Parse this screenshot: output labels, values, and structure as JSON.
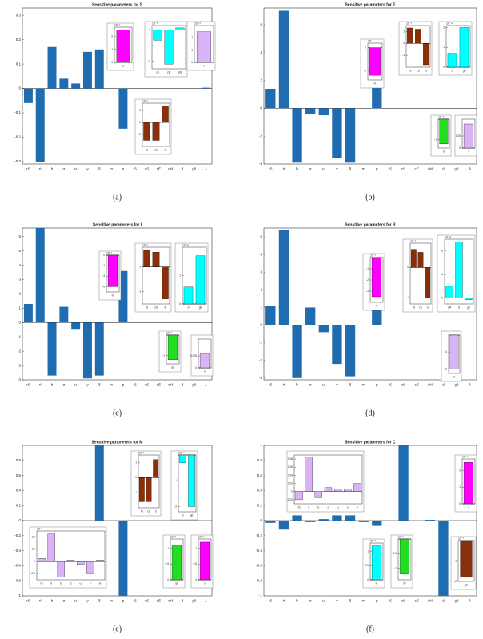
{
  "chart_data": [
    {
      "type": "bar",
      "title": "Sensitive parameters for S",
      "caption": "(a)",
      "color": "#1f6cb0",
      "categories": [
        "rS",
        "rI",
        "b",
        "α",
        "ω",
        "γ",
        "δ",
        "m",
        "p",
        "fS",
        "cS",
        "cE",
        "cM",
        "d",
        "g0",
        "λ"
      ],
      "values": [
        -0.06,
        -0.3,
        0.17,
        0.04,
        0.02,
        0.15,
        0.16,
        0,
        -0.165,
        0,
        0,
        0,
        0,
        0,
        0,
        0.003
      ],
      "ylim": [
        -0.31,
        0.33
      ],
      "yticks": [
        -0.3,
        -0.2,
        -0.1,
        0,
        0.1,
        0.2,
        0.3
      ],
      "insets": [
        {
          "scale": "10⁻⁶",
          "categories": [
            "m"
          ],
          "values": [
            2.5
          ],
          "color": "#ff00ff",
          "ylim": [
            0,
            2.7
          ],
          "yticks": [
            0,
            1,
            2
          ]
        },
        {
          "scale": "10⁻⁸",
          "categories": [
            "cS",
            "cE",
            "cM"
          ],
          "values": [
            -1.3,
            -4.4,
            0.3
          ],
          "color": "#00ffff",
          "ylim": [
            -5,
            0.6
          ],
          "yticks": [
            -4,
            -2,
            0
          ]
        },
        {
          "scale": "10⁻¹⁰",
          "categories": [
            "λ"
          ],
          "values": [
            2.5
          ],
          "color": "#d9b3f5",
          "ylim": [
            0,
            3
          ],
          "yticks": [
            0,
            1,
            2
          ]
        },
        {
          "scale": "10⁻⁶",
          "categories": [
            "fS",
            "cS",
            "d"
          ],
          "values": [
            -3,
            -3,
            2.7
          ],
          "color": "#8b2e0a",
          "ylim": [
            -4,
            3.2
          ],
          "yticks": [
            -2,
            0,
            2
          ]
        }
      ]
    },
    {
      "type": "bar",
      "title": "Sensitive parameters for E",
      "caption": "(b)",
      "color": "#1f6cb0",
      "categories": [
        "rS",
        "rI",
        "b",
        "α",
        "ω",
        "γ",
        "δ",
        "m",
        "p",
        "fS",
        "cS",
        "cE",
        "cM",
        "d",
        "g0",
        "λ"
      ],
      "values": [
        1.4,
        7,
        -3.9,
        -0.4,
        -0.5,
        -3.6,
        -3.9,
        0,
        3.9,
        0,
        0,
        0,
        0,
        0,
        0,
        0
      ],
      "ylim": [
        -4,
        7.2
      ],
      "yticks": [
        -4,
        -2,
        0,
        2,
        4,
        6
      ],
      "insets": [
        {
          "scale": "10⁻⁶",
          "categories": [
            "m"
          ],
          "values": [
            -1.2
          ],
          "color": "#ff00ff",
          "ylim": [
            -1.4,
            0.2
          ],
          "yticks": [
            -1,
            0
          ]
        },
        {
          "scale": "10⁻⁶",
          "categories": [
            "fS",
            "cS",
            "d"
          ],
          "values": [
            1.3,
            1.2,
            -1.8
          ],
          "color": "#8b2e0a",
          "ylim": [
            -2,
            1.5
          ],
          "yticks": [
            -1,
            0,
            1
          ]
        },
        {
          "scale": "10⁻¹¹",
          "categories": [
            "d",
            "g0"
          ],
          "values": [
            0.7,
            2
          ],
          "color": "#00ffff",
          "ylim": [
            0,
            2.1
          ],
          "yticks": [
            0,
            1,
            2
          ]
        },
        {
          "scale": "10⁻⁸",
          "categories": [
            "d"
          ],
          "values": [
            -1.2
          ],
          "color": "#22dd22",
          "ylim": [
            -1.4,
            0
          ],
          "yticks": [
            -1
          ]
        },
        {
          "scale": "",
          "categories": [
            "λ"
          ],
          "values": [
            0.1
          ],
          "color": "#d9b3f5",
          "ylim": [
            0,
            0.12
          ],
          "yticks": [
            0,
            0.05
          ]
        }
      ]
    },
    {
      "type": "bar",
      "title": "Sensitive parameters for I",
      "caption": "(c)",
      "color": "#1f6cb0",
      "categories": [
        "rS",
        "rI",
        "b",
        "α",
        "ω",
        "γ",
        "δ",
        "m",
        "p",
        "fS",
        "cS",
        "cE",
        "cM",
        "d",
        "g0",
        "λ"
      ],
      "values": [
        1.3,
        6.6,
        -3.7,
        1.1,
        -0.5,
        -3.9,
        -3.7,
        0,
        3.6,
        0,
        0,
        0,
        0,
        0,
        0,
        0
      ],
      "ylim": [
        -4,
        6.6
      ],
      "yticks": [
        -4,
        -3,
        -2,
        -1,
        0,
        1,
        2,
        3,
        4,
        5,
        6
      ],
      "insets": [
        {
          "scale": "10⁻⁶",
          "categories": [
            "m"
          ],
          "values": [
            -6
          ],
          "color": "#ff00ff",
          "ylim": [
            -7,
            0
          ],
          "yticks": [
            -6,
            -4,
            -2,
            0
          ]
        },
        {
          "scale": "10⁻⁶",
          "categories": [
            "fS",
            "cS",
            "d"
          ],
          "values": [
            0.7,
            0.6,
            -1.3
          ],
          "color": "#8b2e0a",
          "ylim": [
            -1.5,
            0.8
          ],
          "yticks": [
            -1,
            0
          ]
        },
        {
          "scale": "10⁻¹¹",
          "categories": [
            "d",
            "g0"
          ],
          "values": [
            0.6,
            1.7
          ],
          "color": "#00ffff",
          "ylim": [
            0,
            2
          ],
          "yticks": [
            0,
            1
          ]
        },
        {
          "scale": "10⁻⁸",
          "categories": [
            "g0"
          ],
          "values": [
            -1.2
          ],
          "color": "#22dd22",
          "ylim": [
            -1.4,
            0
          ],
          "yticks": [
            -1
          ]
        },
        {
          "scale": "",
          "categories": [
            "λ"
          ],
          "values": [
            0.006
          ],
          "color": "#d9b3f5",
          "ylim": [
            0,
            0.012
          ],
          "yticks": [
            0,
            0.005
          ]
        }
      ]
    },
    {
      "type": "bar",
      "title": "Sensitive parameters for R",
      "caption": "(d)",
      "color": "#1f6cb0",
      "categories": [
        "rS",
        "rI",
        "b",
        "α",
        "ω",
        "γ",
        "δ",
        "m",
        "p",
        "fS",
        "cS",
        "cE",
        "cM",
        "d",
        "g0",
        "λ"
      ],
      "values": [
        1.1,
        5.4,
        -3,
        1,
        -0.4,
        -2.2,
        -2.9,
        0,
        2.9,
        0,
        0,
        0,
        0,
        0,
        0,
        0
      ],
      "ylim": [
        -3.1,
        5.5
      ],
      "yticks": [
        -3,
        -2,
        -1,
        0,
        1,
        2,
        3,
        4,
        5
      ],
      "insets": [
        {
          "scale": "10⁻⁶",
          "categories": [
            "m"
          ],
          "values": [
            -3.5
          ],
          "color": "#ff00ff",
          "ylim": [
            -4,
            0
          ],
          "yticks": [
            -3,
            -2,
            -1
          ]
        },
        {
          "scale": "10⁻⁶",
          "categories": [
            "fS",
            "cS",
            "d"
          ],
          "values": [
            0.6,
            0.5,
            -1
          ],
          "color": "#8b2e0a",
          "ylim": [
            -1.2,
            0.8
          ],
          "yticks": [
            -1,
            0
          ]
        },
        {
          "scale": "10⁻¹²",
          "categories": [
            "cM",
            "d",
            "g0"
          ],
          "values": [
            2,
            9.5,
            -0.3
          ],
          "color": "#00ffff",
          "ylim": [
            -1,
            10
          ],
          "yticks": [
            0,
            4,
            8
          ]
        },
        {
          "scale": "",
          "categories": [
            "d"
          ],
          "values": [
            -8
          ],
          "color": "#d9b3f5",
          "ylim": [
            -9,
            0
          ],
          "yticks": [
            -8,
            -4
          ]
        }
      ]
    },
    {
      "type": "bar",
      "title": "Sensitive parameters for M",
      "caption": "(e)",
      "color": "#1f6cb0",
      "categories": [
        "rS",
        "rI",
        "b",
        "α",
        "ω",
        "γ",
        "δ",
        "m",
        "p",
        "fS",
        "cS",
        "cE",
        "cM",
        "d",
        "g0",
        "λ"
      ],
      "values": [
        0,
        0,
        0,
        0,
        0,
        0,
        1,
        0,
        -1,
        0,
        0,
        0,
        0,
        0,
        0,
        0
      ],
      "ylim": [
        -1,
        1
      ],
      "yticks": [
        -1,
        -0.8,
        -0.6,
        -0.4,
        -0.2,
        0,
        0.2,
        0.4,
        0.6,
        0.8
      ],
      "insets": [
        {
          "scale": "10⁻⁶",
          "categories": [
            "fS",
            "cS",
            "d"
          ],
          "values": [
            -1.6,
            -1.6,
            1.2
          ],
          "color": "#8b2e0a",
          "ylim": [
            -2,
            1.5
          ],
          "yticks": [
            -1,
            0,
            1
          ]
        },
        {
          "scale": "10⁻¹¹",
          "categories": [
            "d",
            "g0"
          ],
          "values": [
            -0.3,
            -2
          ],
          "color": "#00ffff",
          "ylim": [
            -2.2,
            0
          ],
          "yticks": [
            -2,
            -1
          ]
        },
        {
          "scale": "10⁻⁸",
          "categories": [
            "rS",
            "rI",
            "b",
            "α",
            "ω",
            "γ",
            "m"
          ],
          "values": [
            0.1,
            0.9,
            -0.5,
            0.05,
            -0.1,
            -0.4,
            0.05
          ],
          "color": "#d9b3f5",
          "ylim": [
            -0.6,
            1
          ],
          "yticks": [
            -0.4,
            0,
            0.4,
            0.8
          ]
        },
        {
          "scale": "10⁻⁸",
          "categories": [
            "g0"
          ],
          "values": [
            1.1
          ],
          "color": "#22dd22",
          "ylim": [
            0,
            1.3
          ],
          "yticks": [
            0,
            0.5,
            1
          ]
        },
        {
          "scale": "10⁻⁸",
          "categories": [
            "λ"
          ],
          "values": [
            1.2
          ],
          "color": "#ff00ff",
          "ylim": [
            0,
            1.3
          ],
          "yticks": [
            0,
            0.5,
            1
          ]
        }
      ]
    },
    {
      "type": "bar",
      "title": "Sensitive parameters for C",
      "caption": "(f)",
      "color": "#1f6cb0",
      "categories": [
        "rS",
        "rI",
        "b",
        "α",
        "ω",
        "γ",
        "δ",
        "m",
        "p",
        "fS",
        "cS",
        "cE",
        "cM",
        "d",
        "g0",
        "λ"
      ],
      "values": [
        -0.03,
        -0.12,
        0.07,
        -0.02,
        0.02,
        0.07,
        0.07,
        -0.02,
        -0.07,
        0,
        1,
        0,
        0.01,
        -1,
        0,
        0
      ],
      "ylim": [
        -1,
        1
      ],
      "yticks": [
        -1,
        -0.8,
        -0.6,
        -0.4,
        -0.2,
        0,
        0.2,
        0.4,
        0.6,
        0.8,
        1
      ],
      "insets": [
        {
          "scale": "",
          "categories": [
            "rS",
            "rI",
            "b",
            "α",
            "ω",
            "γ",
            "δ"
          ],
          "values": [
            -0.02,
            0.085,
            -0.015,
            0.01,
            0.007,
            0.007,
            0.02
          ],
          "color": "#d9b3f5",
          "ylim": [
            -0.03,
            0.09
          ],
          "yticks": [
            -0.02,
            0,
            0.02,
            0.04,
            0.06,
            0.08
          ]
        },
        {
          "scale": "10⁻⁸",
          "categories": [
            "m"
          ],
          "values": [
            1.2
          ],
          "color": "#00ffff",
          "ylim": [
            0,
            1.3
          ],
          "yticks": [
            0,
            0.5,
            1
          ]
        },
        {
          "scale": "10⁻⁸",
          "categories": [
            "fS"
          ],
          "values": [
            -1.2
          ],
          "color": "#22dd22",
          "ylim": [
            -1.4,
            0
          ],
          "yticks": [
            -1,
            -0.5
          ]
        },
        {
          "scale": "10⁻⁶",
          "categories": [
            "λ"
          ],
          "values": [
            2.5
          ],
          "color": "#ff00ff",
          "ylim": [
            0,
            2.7
          ],
          "yticks": [
            0,
            1,
            2
          ]
        },
        {
          "scale": "10⁻⁶",
          "categories": [
            "g0"
          ],
          "values": [
            -1.8
          ],
          "color": "#8b2e0a",
          "ylim": [
            -2,
            0
          ],
          "yticks": [
            -2,
            -1
          ]
        }
      ]
    }
  ]
}
